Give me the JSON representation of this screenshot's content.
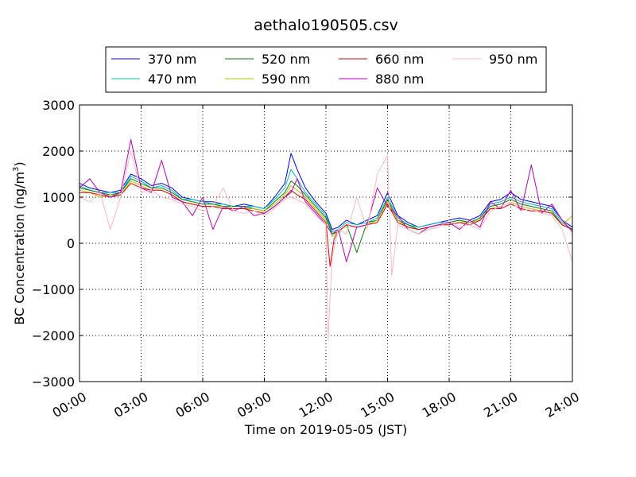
{
  "chart_data": {
    "type": "line",
    "title": "aethalo190505.csv",
    "xlabel": "Time on 2019-05-05 (JST)",
    "ylabel": "BC Concentration (ng/m",
    "ylabel_sup": "3",
    "ylabel_end": ")",
    "xlim": [
      0,
      24
    ],
    "ylim": [
      -3000,
      3000
    ],
    "x_unit": "hours",
    "xticks": [
      0,
      3,
      6,
      9,
      12,
      15,
      18,
      21,
      24
    ],
    "xtick_labels": [
      "00:00",
      "03:00",
      "06:00",
      "09:00",
      "12:00",
      "15:00",
      "18:00",
      "21:00",
      "24:00"
    ],
    "yticks": [
      -3000,
      -2000,
      -1000,
      0,
      1000,
      2000,
      3000
    ],
    "ytick_labels": [
      "−3000",
      "−2000",
      "−1000",
      "0",
      "1000",
      "2000",
      "3000"
    ],
    "grid": true,
    "legend_position": "top, above plot",
    "series": [
      {
        "name": "370 nm",
        "color": "#0000ff",
        "x": [
          0,
          0.5,
          1,
          1.5,
          2,
          2.5,
          3,
          3.5,
          4,
          4.5,
          5,
          5.5,
          6,
          6.5,
          7,
          7.5,
          8,
          8.5,
          9,
          9.5,
          10,
          10.3,
          10.6,
          11,
          11.5,
          12,
          12.3,
          12.6,
          13,
          13.5,
          14,
          14.5,
          15,
          15.5,
          16,
          16.5,
          17,
          17.5,
          18,
          18.5,
          19,
          19.5,
          20,
          20.5,
          21,
          21.5,
          22,
          22.5,
          23,
          23.5,
          24
        ],
        "values": [
          1300,
          1200,
          1150,
          1100,
          1150,
          1500,
          1400,
          1250,
          1300,
          1200,
          1000,
          950,
          900,
          900,
          850,
          800,
          850,
          800,
          750,
          1000,
          1300,
          1950,
          1600,
          1200,
          900,
          650,
          300,
          350,
          500,
          400,
          500,
          600,
          1100,
          600,
          450,
          350,
          400,
          450,
          500,
          550,
          500,
          600,
          900,
          950,
          1100,
          950,
          900,
          850,
          800,
          500,
          350
        ]
      },
      {
        "name": "470 nm",
        "color": "#00bfbf",
        "x": [
          0,
          0.5,
          1,
          1.5,
          2,
          2.5,
          3,
          3.5,
          4,
          4.5,
          5,
          5.5,
          6,
          6.5,
          7,
          7.5,
          8,
          8.5,
          9,
          9.5,
          10,
          10.3,
          10.6,
          11,
          11.5,
          12,
          12.3,
          12.6,
          13,
          13.5,
          14,
          14.5,
          15,
          15.5,
          16,
          16.5,
          17,
          17.5,
          18,
          18.5,
          19,
          19.5,
          20,
          20.5,
          21,
          21.5,
          22,
          22.5,
          23,
          23.5,
          24
        ],
        "values": [
          1250,
          1150,
          1100,
          1100,
          1100,
          1450,
          1350,
          1200,
          1250,
          1150,
          950,
          950,
          900,
          850,
          850,
          800,
          800,
          800,
          750,
          950,
          1200,
          1600,
          1400,
          1100,
          850,
          600,
          250,
          300,
          450,
          400,
          450,
          550,
          1000,
          550,
          400,
          350,
          400,
          450,
          450,
          500,
          450,
          550,
          850,
          900,
          1000,
          900,
          850,
          800,
          750,
          450,
          300
        ]
      },
      {
        "name": "520 nm",
        "color": "#008000",
        "x": [
          0,
          0.5,
          1,
          1.5,
          2,
          2.5,
          3,
          3.5,
          4,
          4.5,
          5,
          5.5,
          6,
          6.5,
          7,
          7.5,
          8,
          8.5,
          9,
          9.5,
          10,
          10.3,
          10.6,
          11,
          11.5,
          12,
          12.3,
          12.6,
          13,
          13.5,
          14,
          14.5,
          15,
          15.5,
          16,
          16.5,
          17,
          17.5,
          18,
          18.5,
          19,
          19.5,
          20,
          20.5,
          21,
          21.5,
          22,
          22.5,
          23,
          23.5,
          24
        ],
        "values": [
          1200,
          1150,
          1100,
          1050,
          1100,
          1400,
          1300,
          1200,
          1200,
          1100,
          950,
          900,
          850,
          850,
          800,
          800,
          800,
          750,
          700,
          900,
          1100,
          1350,
          1250,
          1050,
          800,
          550,
          200,
          250,
          400,
          -200,
          450,
          500,
          950,
          500,
          400,
          300,
          350,
          400,
          450,
          500,
          450,
          550,
          800,
          850,
          950,
          850,
          800,
          750,
          700,
          400,
          300
        ]
      },
      {
        "name": "590 nm",
        "color": "#bfbf00",
        "x": [
          0,
          0.5,
          1,
          1.5,
          2,
          2.5,
          3,
          3.5,
          4,
          4.5,
          5,
          5.5,
          6,
          6.5,
          7,
          7.5,
          8,
          8.5,
          9,
          9.5,
          10,
          10.3,
          10.6,
          11,
          11.5,
          12,
          12.3,
          12.6,
          13,
          13.5,
          14,
          14.5,
          15,
          15.5,
          16,
          16.5,
          17,
          17.5,
          18,
          18.5,
          19,
          19.5,
          20,
          20.5,
          21,
          21.5,
          22,
          22.5,
          23,
          23.5,
          24
        ],
        "values": [
          1150,
          1100,
          1000,
          1050,
          1050,
          1350,
          1250,
          1150,
          1150,
          1050,
          900,
          850,
          800,
          800,
          800,
          750,
          750,
          750,
          700,
          850,
          1050,
          1250,
          1150,
          1000,
          750,
          500,
          150,
          250,
          400,
          350,
          400,
          500,
          900,
          500,
          350,
          300,
          350,
          400,
          400,
          450,
          450,
          500,
          750,
          800,
          900,
          800,
          750,
          700,
          650,
          400,
          600
        ]
      },
      {
        "name": "660 nm",
        "color": "#e00000",
        "x": [
          0,
          0.5,
          1,
          1.5,
          2,
          2.5,
          3,
          3.5,
          4,
          4.5,
          5,
          5.5,
          6,
          6.5,
          7,
          7.5,
          8,
          8.5,
          9,
          9.5,
          10,
          10.3,
          10.6,
          11,
          11.5,
          12,
          12.2,
          12.4,
          12.6,
          13,
          13.5,
          14,
          14.5,
          15,
          15.5,
          16,
          16.5,
          17,
          17.5,
          18,
          18.5,
          19,
          19.5,
          20,
          20.5,
          21,
          21.5,
          22,
          22.5,
          23,
          23.5,
          24
        ],
        "values": [
          1100,
          1100,
          1050,
          1000,
          1050,
          1300,
          1200,
          1150,
          1150,
          1050,
          900,
          850,
          800,
          800,
          750,
          750,
          750,
          700,
          650,
          800,
          1000,
          1150,
          1050,
          950,
          700,
          450,
          -500,
          100,
          250,
          400,
          350,
          400,
          450,
          850,
          450,
          350,
          300,
          350,
          400,
          400,
          450,
          400,
          500,
          750,
          750,
          850,
          750,
          700,
          700,
          650,
          400,
          300
        ]
      },
      {
        "name": "880 nm",
        "color": "#bf00bf",
        "x": [
          0,
          0.5,
          1,
          1.5,
          2,
          2.5,
          3,
          3.5,
          4,
          4.5,
          5,
          5.5,
          6,
          6.5,
          7,
          7.5,
          8,
          8.5,
          9,
          9.5,
          10,
          10.3,
          10.6,
          11,
          11.5,
          12,
          12.3,
          12.6,
          13,
          13.5,
          14,
          14.5,
          15,
          15.5,
          16,
          16.5,
          17,
          17.5,
          18,
          18.5,
          19,
          19.5,
          20,
          20.5,
          21,
          21.5,
          22,
          22.5,
          23,
          23.5,
          24
        ],
        "values": [
          1200,
          1400,
          1100,
          1000,
          1100,
          2250,
          1200,
          1100,
          1800,
          1000,
          900,
          600,
          1000,
          300,
          800,
          700,
          800,
          600,
          650,
          800,
          1000,
          1100,
          1400,
          900,
          650,
          400,
          200,
          300,
          -400,
          350,
          400,
          1200,
          800,
          600,
          300,
          200,
          350,
          400,
          450,
          300,
          500,
          350,
          900,
          750,
          1150,
          700,
          1700,
          650,
          850,
          500,
          250
        ]
      },
      {
        "name": "950 nm",
        "color": "#ffb6c1",
        "x": [
          0,
          0.5,
          1,
          1.5,
          2,
          2.5,
          3,
          3.5,
          4,
          4.5,
          5,
          5.5,
          6,
          6.5,
          7,
          7.5,
          8,
          8.5,
          9,
          9.5,
          10,
          10.3,
          10.6,
          11,
          11.5,
          12,
          12.1,
          12.3,
          12.6,
          13,
          13.5,
          14,
          14.5,
          15,
          15.2,
          15.5,
          16,
          16.5,
          17,
          17.5,
          18,
          18.5,
          19,
          19.5,
          20,
          20.5,
          21,
          21.5,
          22,
          22.5,
          23,
          23.5,
          24
        ],
        "values": [
          1000,
          900,
          1100,
          300,
          1000,
          2000,
          1100,
          1150,
          1000,
          950,
          850,
          800,
          700,
          800,
          1200,
          700,
          650,
          700,
          600,
          750,
          950,
          1000,
          950,
          850,
          600,
          400,
          -2100,
          -300,
          300,
          200,
          1000,
          300,
          1500,
          1900,
          -700,
          400,
          300,
          200,
          300,
          350,
          500,
          350,
          400,
          300,
          700,
          800,
          900,
          700,
          750,
          650,
          600,
          300,
          -400
        ]
      }
    ]
  }
}
